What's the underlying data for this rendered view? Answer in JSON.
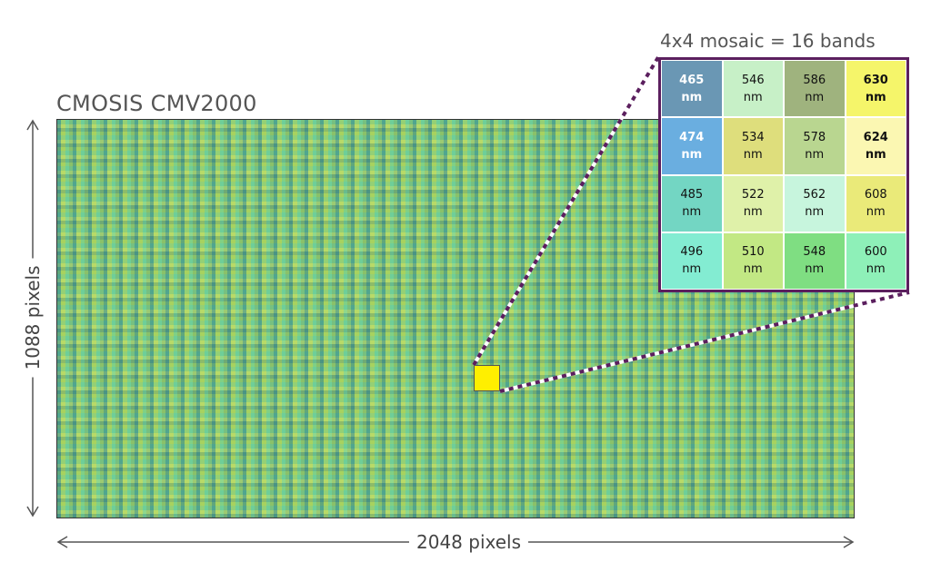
{
  "sensor": {
    "title": "CMOSIS CMV2000",
    "width_label": "2048 pixels",
    "height_label": "1088 pixels",
    "mosaic_color_a": "#86c97a",
    "highlight_color": "#ffef00"
  },
  "inset": {
    "caption": "4x4 mosaic = 16 bands",
    "border_color": "#5b1f5e",
    "cells": [
      {
        "value": "465",
        "unit": "nm",
        "color": "#6a97b4",
        "bold": true,
        "white": true
      },
      {
        "value": "546",
        "unit": "nm",
        "color": "#c7f0c7",
        "bold": false,
        "white": false
      },
      {
        "value": "586",
        "unit": "nm",
        "color": "#9fb37e",
        "bold": false,
        "white": false
      },
      {
        "value": "630",
        "unit": "nm",
        "color": "#f5f56a",
        "bold": true,
        "white": false
      },
      {
        "value": "474",
        "unit": "nm",
        "color": "#6aaee0",
        "bold": true,
        "white": true
      },
      {
        "value": "534",
        "unit": "nm",
        "color": "#dede7c",
        "bold": false,
        "white": false
      },
      {
        "value": "578",
        "unit": "nm",
        "color": "#b9d690",
        "bold": false,
        "white": false
      },
      {
        "value": "624",
        "unit": "nm",
        "color": "#fbf7b2",
        "bold": true,
        "white": false
      },
      {
        "value": "485",
        "unit": "nm",
        "color": "#73d6c3",
        "bold": false,
        "white": false
      },
      {
        "value": "522",
        "unit": "nm",
        "color": "#dff1a9",
        "bold": false,
        "white": false
      },
      {
        "value": "562",
        "unit": "nm",
        "color": "#c7f5dd",
        "bold": false,
        "white": false
      },
      {
        "value": "608",
        "unit": "nm",
        "color": "#eaea79",
        "bold": false,
        "white": false
      },
      {
        "value": "496",
        "unit": "nm",
        "color": "#83ecd2",
        "bold": false,
        "white": false
      },
      {
        "value": "510",
        "unit": "nm",
        "color": "#c2e884",
        "bold": false,
        "white": false
      },
      {
        "value": "548",
        "unit": "nm",
        "color": "#7fde82",
        "bold": false,
        "white": false
      },
      {
        "value": "600",
        "unit": "nm",
        "color": "#8ef0b8",
        "bold": false,
        "white": false
      }
    ]
  }
}
